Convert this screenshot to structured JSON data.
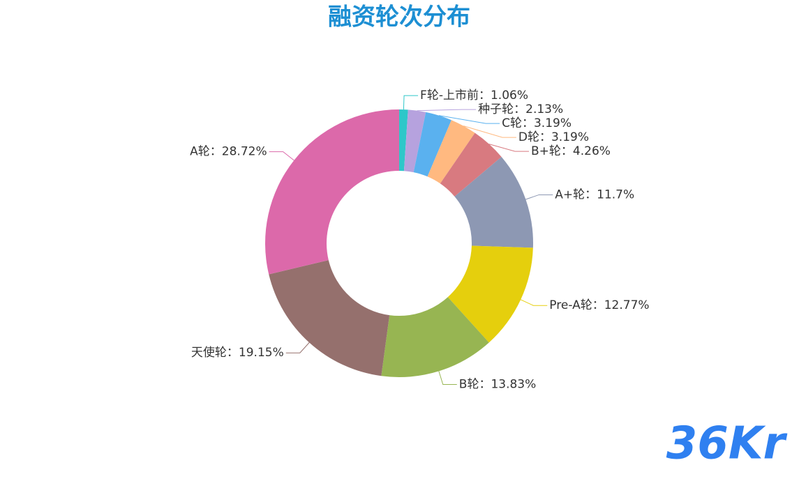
{
  "chart_data": {
    "type": "donut",
    "title": "融资轮次分布",
    "categories": [
      "F轮-上市前",
      "种子轮",
      "C轮",
      "D轮",
      "B+轮",
      "A+轮",
      "Pre-A轮",
      "B轮",
      "天使轮",
      "A轮"
    ],
    "values": [
      1.06,
      2.13,
      3.19,
      3.19,
      4.26,
      11.7,
      12.77,
      13.83,
      19.15,
      28.72
    ],
    "value_labels": [
      "1.06%",
      "2.13%",
      "3.19%",
      "3.19%",
      "4.26%",
      "11.7%",
      "12.77%",
      "13.83%",
      "19.15%",
      "28.72%"
    ],
    "label_separator": "：",
    "colors": [
      "#2ec7c9",
      "#b6a2de",
      "#5ab1ef",
      "#ffb980",
      "#d87a80",
      "#8d98b3",
      "#e5cf0d",
      "#97b552",
      "#95706d",
      "#dc69aa"
    ],
    "watermark": "36Kr"
  }
}
